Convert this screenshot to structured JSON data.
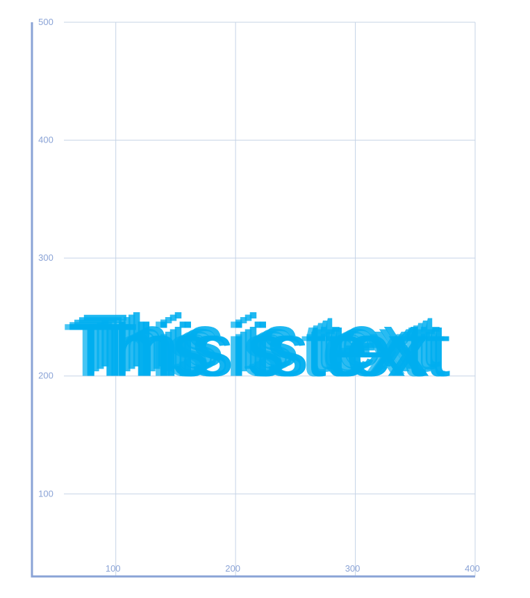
{
  "chart_data": {
    "type": "scatter",
    "title": "",
    "xlabel": "",
    "ylabel": "",
    "xlim": [
      30,
      400
    ],
    "ylim": [
      30,
      500
    ],
    "grid": true,
    "x_ticks": [
      100,
      200,
      300,
      400
    ],
    "y_ticks": [
      100,
      200,
      300,
      400,
      500
    ],
    "text_color": "#00aeef",
    "axis_color": "#8aa3d6",
    "grid_color": "#c5d3e6",
    "text_marks": [
      {
        "text": "This is text",
        "x": 56,
        "y": 200,
        "opacity": 0.72
      },
      {
        "text": "This is text",
        "x": 60,
        "y": 202,
        "opacity": 0.76
      },
      {
        "text": "This is text",
        "x": 64,
        "y": 204,
        "opacity": 0.8
      },
      {
        "text": "This is text",
        "x": 68,
        "y": 206,
        "opacity": 0.84
      },
      {
        "text": "This is text",
        "x": 72,
        "y": 208,
        "opacity": 0.88
      },
      {
        "text": "This is text",
        "x": 76,
        "y": 200,
        "opacity": 0.92
      },
      {
        "text": "This is text",
        "x": 80,
        "y": 200,
        "opacity": 0.96
      },
      {
        "text": "This is text",
        "x": 60,
        "y": 200,
        "opacity": 1.0
      }
    ]
  }
}
